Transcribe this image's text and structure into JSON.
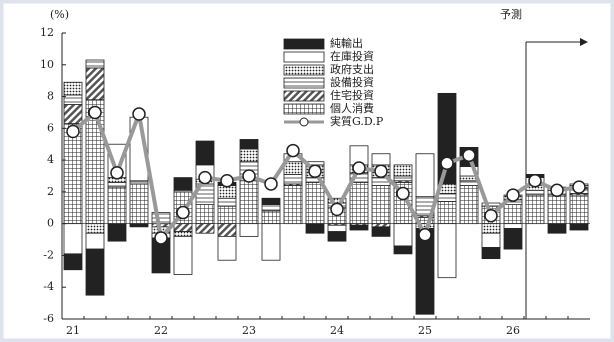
{
  "chart_data": {
    "type": "bar",
    "unit_label": "(%)",
    "forecast_label": "予測",
    "categories": [
      "21",
      null,
      null,
      null,
      "22",
      null,
      null,
      null,
      "23",
      null,
      null,
      null,
      "24",
      null,
      null,
      null,
      "25",
      null,
      null,
      null,
      "26",
      null,
      null,
      null
    ],
    "ylim": [
      -6,
      12
    ],
    "yticks": [
      -6,
      -4,
      -2,
      0,
      2,
      4,
      6,
      8,
      10,
      12
    ],
    "series": [
      {
        "name": "純輸出",
        "pattern": "solid",
        "color": "#222222",
        "values": [
          -1.0,
          -2.9,
          -1.1,
          -0.2,
          -2.2,
          0.8,
          1.5,
          0.2,
          0.6,
          0.4,
          0.0,
          -0.6,
          -0.6,
          -0.3,
          -0.6,
          -0.5,
          -5.4,
          5.7,
          1.2,
          -0.7,
          -1.3,
          0.2,
          -0.6,
          -0.4
        ]
      },
      {
        "name": "在庫投資",
        "pattern": "none",
        "color": "#ffffff",
        "values": [
          -1.9,
          -1.0,
          2.1,
          4.0,
          -0.3,
          -2.4,
          0.9,
          -1.5,
          -0.8,
          -2.3,
          0.5,
          0.2,
          -0.4,
          1.2,
          0.7,
          -1.4,
          2.7,
          -3.4,
          0.6,
          -0.9,
          -0.3,
          0.5,
          0.0,
          0.1
        ]
      },
      {
        "name": "政府支出",
        "pattern": "dots",
        "color": "#222222",
        "values": [
          0.8,
          -0.6,
          0.3,
          0.0,
          -0.4,
          -0.3,
          0.3,
          0.8,
          0.8,
          0.0,
          0.8,
          0.8,
          0.3,
          0.5,
          0.8,
          0.7,
          -0.3,
          0.6,
          0.3,
          -0.6,
          0.3,
          0.3,
          0.2,
          0.2
        ]
      },
      {
        "name": "設備投資",
        "pattern": "lines",
        "color": "#222222",
        "values": [
          0.6,
          0.5,
          0.3,
          0.2,
          0.7,
          0.1,
          1.3,
          0.5,
          1.0,
          0.4,
          0.6,
          0.3,
          0.3,
          0.6,
          0.5,
          0.3,
          1.2,
          0.5,
          0.3,
          0.2,
          0.3,
          0.3,
          0.3,
          0.3
        ]
      },
      {
        "name": "住宅投資",
        "pattern": "hatch",
        "color": "#555555",
        "values": [
          1.2,
          2.0,
          0.0,
          0.0,
          -0.2,
          -0.5,
          -0.6,
          -0.8,
          0.2,
          0.0,
          0.1,
          0.0,
          -0.1,
          -0.1,
          -0.2,
          0.1,
          0.1,
          0.0,
          0.0,
          0.0,
          0.0,
          0.0,
          0.0,
          0.1
        ]
      },
      {
        "name": "個人消費",
        "pattern": "grid",
        "color": "#222222",
        "values": [
          6.3,
          7.8,
          2.3,
          2.5,
          0.0,
          2.0,
          1.2,
          1.1,
          2.7,
          0.8,
          2.4,
          2.6,
          1.0,
          2.6,
          2.4,
          2.6,
          0.4,
          1.4,
          2.4,
          1.1,
          1.2,
          1.8,
          1.8,
          1.8
        ]
      },
      {
        "name": "実質G.D.P",
        "type": "line",
        "color": "#999999",
        "values": [
          5.8,
          7.0,
          3.2,
          6.9,
          -0.9,
          0.7,
          2.9,
          2.7,
          3.0,
          2.5,
          4.6,
          3.3,
          0.9,
          3.5,
          3.3,
          1.9,
          -0.7,
          3.8,
          4.3,
          0.5,
          1.8,
          2.7,
          2.1,
          2.3
        ]
      }
    ]
  }
}
